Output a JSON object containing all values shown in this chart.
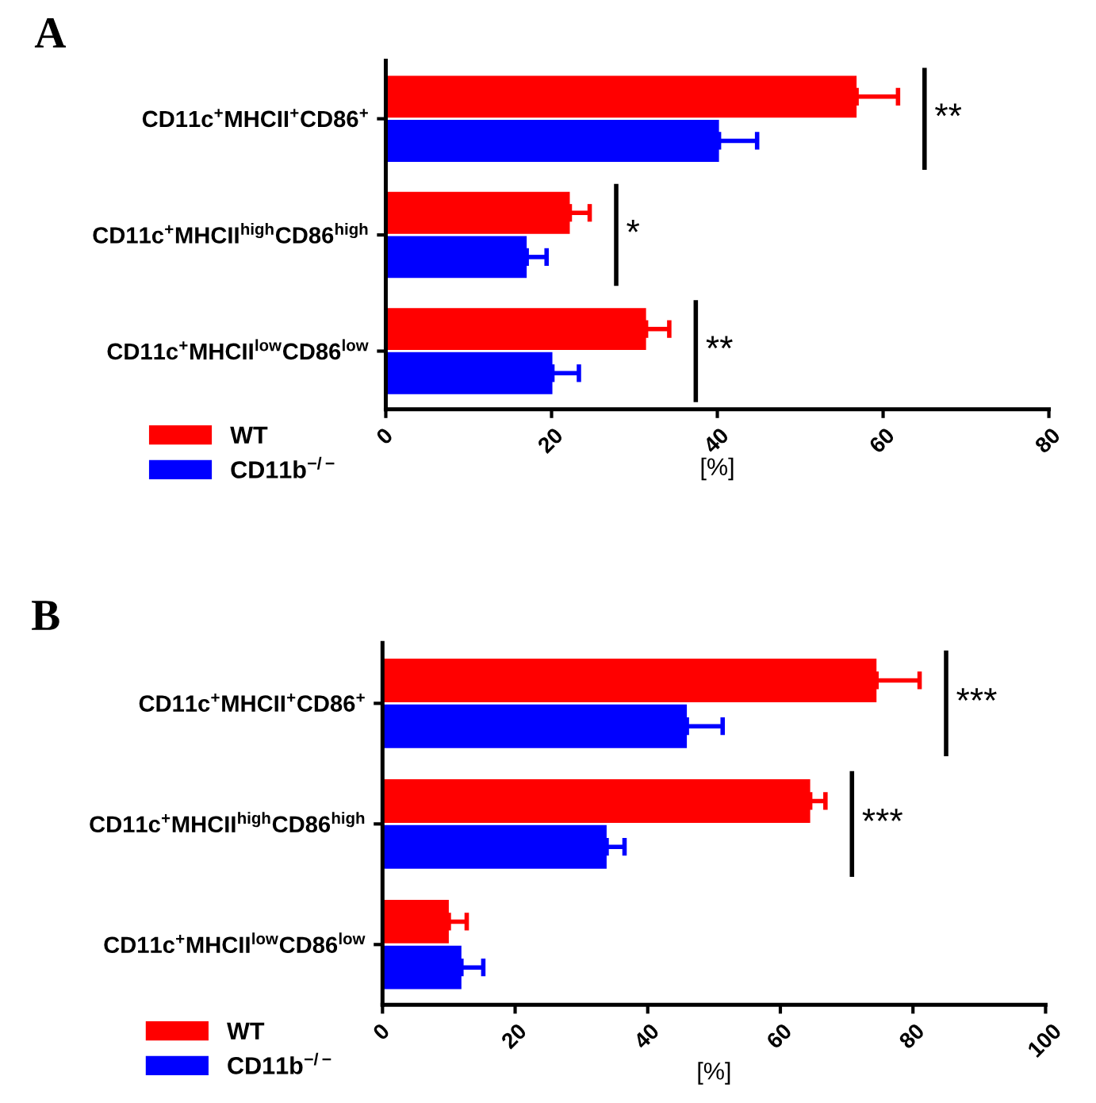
{
  "chart_data": [
    {
      "type": "bar",
      "orientation": "horizontal",
      "title": "A",
      "xlabel": "[%]",
      "categories": [
        "CD11c$^{+}$MHCII$^{+}$CD86$^{+}$",
        "CD11c$^{+}$MHCII$^{high}$CD86$^{high}$",
        "CD11c$^{+}$MHCII$^{low}$CD86$^{low}$"
      ],
      "series": [
        {
          "name": "WT",
          "color": "#ff0000",
          "values": [
            56.8,
            22.2,
            31.4
          ],
          "errors": [
            [
              56.8,
              61.8
            ],
            [
              22.2,
              24.6
            ],
            [
              31.4,
              34.2
            ]
          ]
        },
        {
          "name": "CD11b$^{−/−}$",
          "color": "#0000ff",
          "values": [
            40.2,
            17.0,
            20.1
          ],
          "errors": [
            [
              40.2,
              44.8
            ],
            [
              17.0,
              19.4
            ],
            [
              20.1,
              23.3
            ]
          ]
        }
      ],
      "xlim": [
        0,
        80
      ],
      "xticks": [
        0,
        20,
        40,
        60,
        80
      ],
      "grid": false,
      "legend": "bottom left",
      "annotations": [
        "**",
        "*",
        "**"
      ]
    },
    {
      "type": "bar",
      "orientation": "horizontal",
      "title": "B",
      "xlabel": "[%]",
      "categories": [
        "CD11c$^{+}$MHCII$^{+}$CD86$^{+}$",
        "CD11c$^{+}$MHCII$^{high}$CD86$^{high}$",
        "CD11c$^{+}$MHCII$^{low}$CD86$^{low}$"
      ],
      "series": [
        {
          "name": "WT",
          "color": "#ff0000",
          "values": [
            74.5,
            64.5,
            10.0
          ],
          "errors": [
            [
              74.5,
              81.0
            ],
            [
              64.5,
              66.8
            ],
            [
              10.0,
              12.7
            ]
          ]
        },
        {
          "name": "CD11b$^{−/−}$",
          "color": "#0000ff",
          "values": [
            45.9,
            33.8,
            11.9
          ],
          "errors": [
            [
              45.9,
              51.3
            ],
            [
              33.8,
              36.5
            ],
            [
              11.9,
              15.2
            ]
          ]
        }
      ],
      "xlim": [
        0,
        100
      ],
      "xticks": [
        0,
        20,
        40,
        60,
        80,
        100
      ],
      "grid": false,
      "legend": "bottom left",
      "annotations": [
        "***",
        "***"
      ]
    }
  ]
}
